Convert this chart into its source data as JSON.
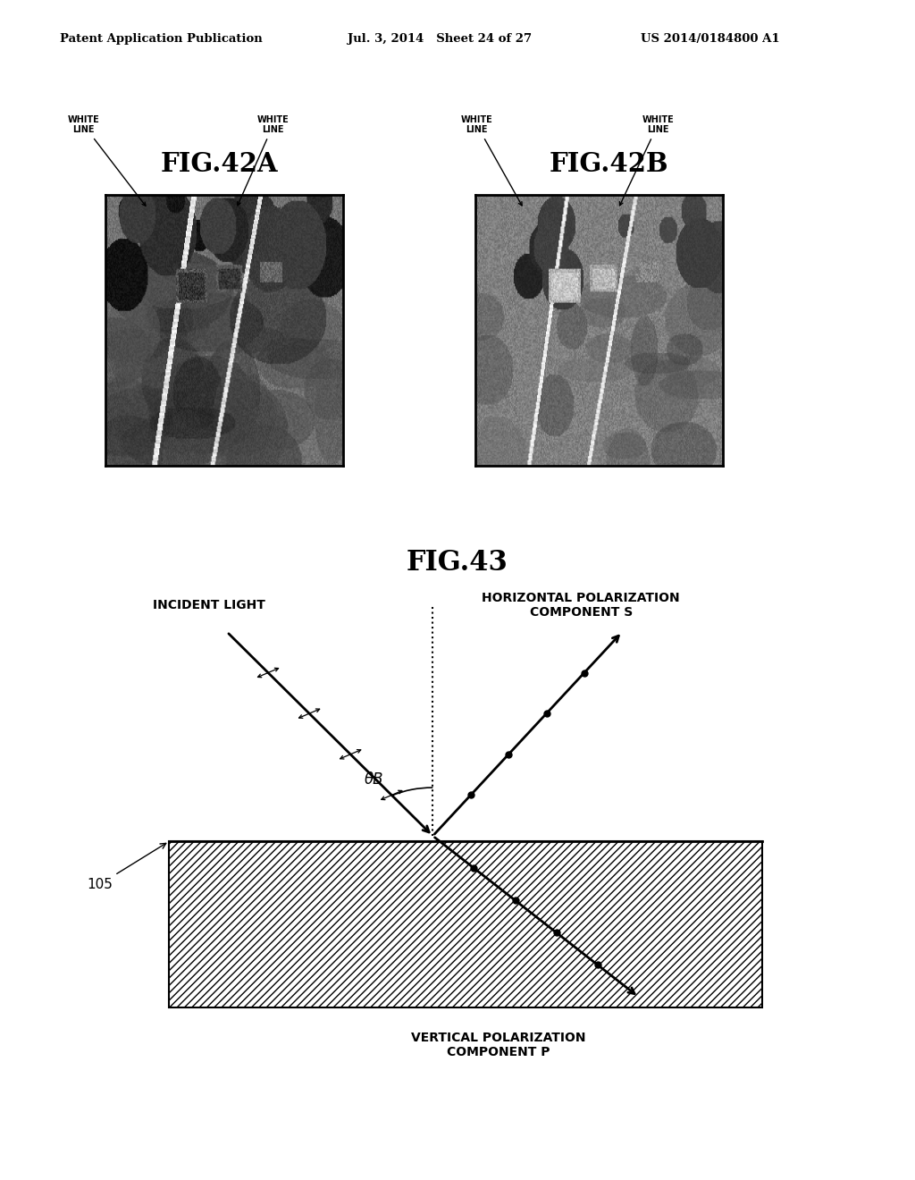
{
  "header_left": "Patent Application Publication",
  "header_center": "Jul. 3, 2014   Sheet 24 of 27",
  "header_right": "US 2014/0184800 A1",
  "fig42a_title": "FIG.42A",
  "fig42b_title": "FIG.42B",
  "fig43_title": "FIG.43",
  "incident_light_label": "INCIDENT LIGHT",
  "horiz_pol_label": "HORIZONTAL POLARIZATION\nCOMPONENT S",
  "vert_pol_label": "VERTICAL POLARIZATION\nCOMPONENT P",
  "theta_label": "θB",
  "label_105": "105",
  "bg_color": "#ffffff",
  "text_color": "#000000"
}
